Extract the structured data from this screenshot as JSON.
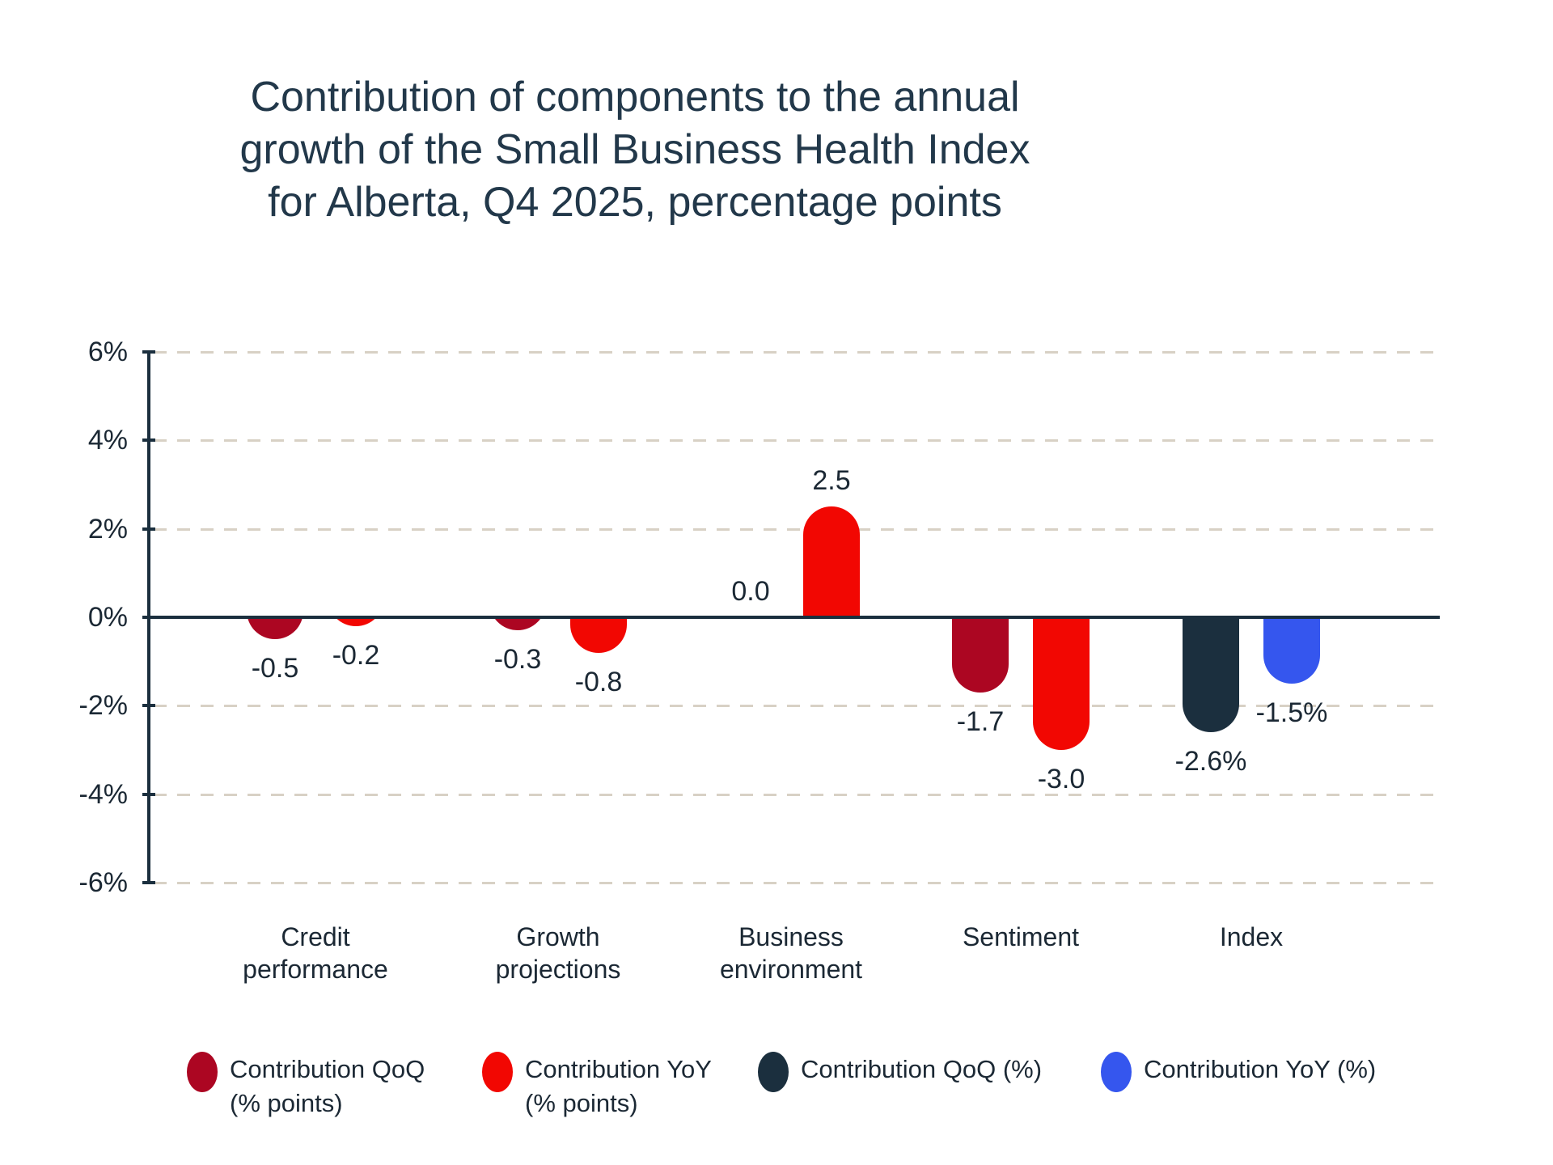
{
  "colors": {
    "background": "#FFFFFF",
    "title_text": "#22384A",
    "label_text": "#1B2834",
    "axis": "#1B2F3E",
    "gridline": "#D8D1C5",
    "qoq_points": "#AC0622",
    "yoy_points": "#F20702",
    "qoq_pct": "#1B2F3E",
    "yoy_pct": "#3556EE"
  },
  "chart_data": {
    "type": "bar",
    "title": "Contribution of components to the annual growth of the Small Business Health Index for Alberta, Q4 2025, percentage points",
    "title_lines": [
      "Contribution of components to the annual",
      "growth of the Small Business Health Index",
      "for Alberta, Q4 2025, percentage points"
    ],
    "xlabel": "",
    "ylabel": "",
    "ylim": [
      -6,
      6
    ],
    "grid": "horizontal-dashed",
    "legend_position": "bottom",
    "y_ticks": [
      {
        "value": 6,
        "label": "6%"
      },
      {
        "value": 4,
        "label": "4%"
      },
      {
        "value": 2,
        "label": "2%"
      },
      {
        "value": 0,
        "label": "0%"
      },
      {
        "value": -2,
        "label": "-2%"
      },
      {
        "value": -4,
        "label": "-4%"
      },
      {
        "value": -6,
        "label": "-6%"
      }
    ],
    "series": [
      {
        "id": "qoq_points",
        "name": "Contribution QoQ (% points)",
        "color": "#AC0622"
      },
      {
        "id": "yoy_points",
        "name": "Contribution YoY (% points)",
        "color": "#F20702"
      },
      {
        "id": "qoq_pct",
        "name": "Contribution QoQ (%)",
        "color": "#1B2F3E"
      },
      {
        "id": "yoy_pct",
        "name": "Contribution YoY (%)",
        "color": "#3556EE"
      }
    ],
    "groups": [
      {
        "id": "credit-performance",
        "label": "Credit performance",
        "label_lines": [
          "Credit",
          "performance"
        ],
        "bars": [
          {
            "series": "qoq_points",
            "value": -0.5,
            "label": "-0.5"
          },
          {
            "series": "yoy_points",
            "value": -0.2,
            "label": "-0.2"
          }
        ]
      },
      {
        "id": "growth-projections",
        "label": "Growth projections",
        "label_lines": [
          "Growth",
          "projections"
        ],
        "bars": [
          {
            "series": "qoq_points",
            "value": -0.3,
            "label": "-0.3"
          },
          {
            "series": "yoy_points",
            "value": -0.8,
            "label": "-0.8"
          }
        ]
      },
      {
        "id": "business-environment",
        "label": "Business environment",
        "label_lines": [
          "Business",
          "environment"
        ],
        "bars": [
          {
            "series": "qoq_points",
            "value": 0.0,
            "label": "0.0"
          },
          {
            "series": "yoy_points",
            "value": 2.5,
            "label": "2.5"
          }
        ]
      },
      {
        "id": "sentiment",
        "label": "Sentiment",
        "label_lines": [
          "Sentiment"
        ],
        "bars": [
          {
            "series": "qoq_points",
            "value": -1.7,
            "label": "-1.7"
          },
          {
            "series": "yoy_points",
            "value": -3.0,
            "label": "-3.0"
          }
        ]
      },
      {
        "id": "index",
        "label": "Index",
        "label_lines": [
          "Index"
        ],
        "bars": [
          {
            "series": "qoq_pct",
            "value": -2.6,
            "label": "-2.6%"
          },
          {
            "series": "yoy_pct",
            "value": -1.5,
            "label": "-1.5%"
          }
        ]
      }
    ],
    "legend": [
      {
        "series": "qoq_points",
        "lines": [
          "Contribution QoQ",
          "(% points)"
        ]
      },
      {
        "series": "yoy_points",
        "lines": [
          "Contribution YoY",
          "(% points)"
        ]
      },
      {
        "series": "qoq_pct",
        "lines": [
          "Contribution QoQ (%)"
        ]
      },
      {
        "series": "yoy_pct",
        "lines": [
          "Contribution YoY (%)"
        ]
      }
    ]
  }
}
